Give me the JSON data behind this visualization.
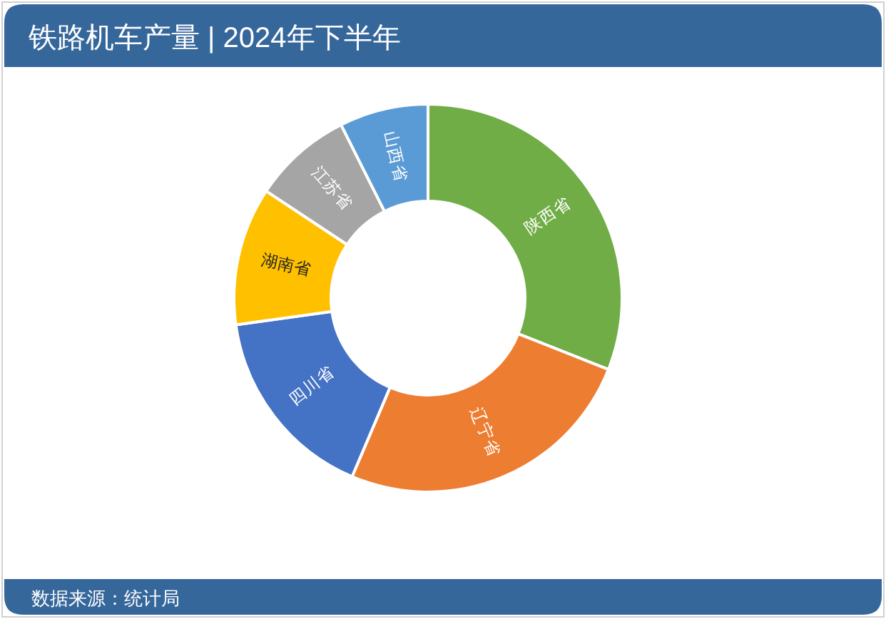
{
  "chart_data": {
    "type": "donut",
    "title": "铁路机车产量 | 2024年下半年",
    "annotations": [
      "数据来源：统计局"
    ],
    "categories": [
      "陕西省",
      "辽宁省",
      "四川省",
      "湖南省",
      "江苏省",
      "山西省"
    ],
    "values": [
      31.0,
      25.4,
      16.4,
      11.5,
      8.3,
      7.4
    ],
    "colors": [
      "#70ad47",
      "#ed7d31",
      "#4472c4",
      "#ffc000",
      "#a5a5a5",
      "#5b9bd5"
    ]
  }
}
